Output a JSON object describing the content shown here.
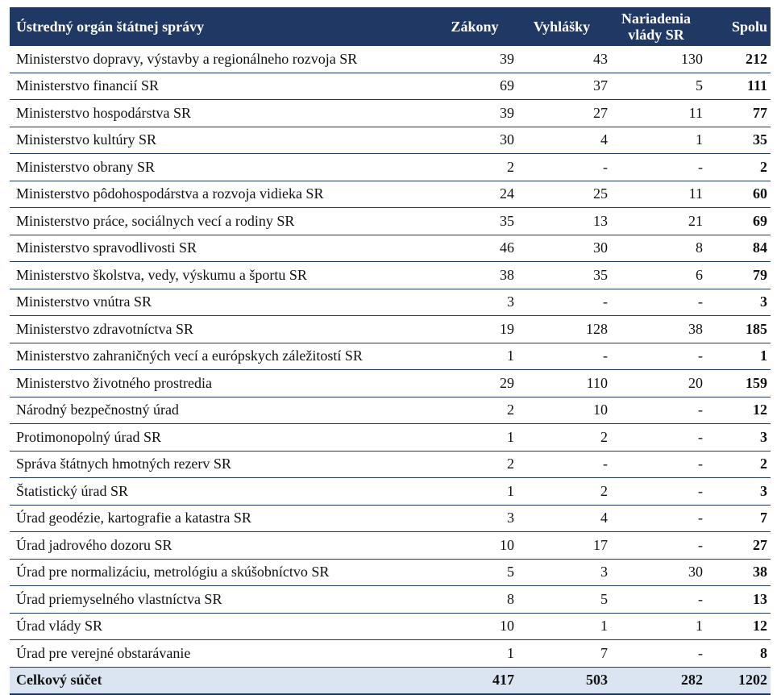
{
  "header": {
    "col0": "Ústredný orgán štátnej správy",
    "col1": "Zákony",
    "col2": "Vyhlášky",
    "col3": "Nariadenia vlády SR",
    "col4": "Spolu"
  },
  "rows": [
    {
      "name": "Ministerstvo dopravy, výstavby a regionálneho rozvoja SR",
      "zakony": "39",
      "vyhlasky": "43",
      "nariadenia": "130",
      "spolu": "212"
    },
    {
      "name": "Ministerstvo financií SR",
      "zakony": "69",
      "vyhlasky": "37",
      "nariadenia": "5",
      "spolu": "111"
    },
    {
      "name": "Ministerstvo hospodárstva SR",
      "zakony": "39",
      "vyhlasky": "27",
      "nariadenia": "11",
      "spolu": "77"
    },
    {
      "name": "Ministerstvo kultúry SR",
      "zakony": "30",
      "vyhlasky": "4",
      "nariadenia": "1",
      "spolu": "35"
    },
    {
      "name": "Ministerstvo obrany SR",
      "zakony": "2",
      "vyhlasky": "-",
      "nariadenia": "-",
      "spolu": "2"
    },
    {
      "name": "Ministerstvo pôdohospodárstva a rozvoja vidieka SR",
      "zakony": "24",
      "vyhlasky": "25",
      "nariadenia": "11",
      "spolu": "60"
    },
    {
      "name": "Ministerstvo práce, sociálnych vecí a rodiny SR",
      "zakony": "35",
      "vyhlasky": "13",
      "nariadenia": "21",
      "spolu": "69"
    },
    {
      "name": "Ministerstvo spravodlivosti SR",
      "zakony": "46",
      "vyhlasky": "30",
      "nariadenia": "8",
      "spolu": "84"
    },
    {
      "name": "Ministerstvo školstva, vedy, výskumu a športu SR",
      "zakony": "38",
      "vyhlasky": "35",
      "nariadenia": "6",
      "spolu": "79"
    },
    {
      "name": "Ministerstvo vnútra SR",
      "zakony": "3",
      "vyhlasky": "-",
      "nariadenia": "-",
      "spolu": "3"
    },
    {
      "name": "Ministerstvo zdravotníctva SR",
      "zakony": "19",
      "vyhlasky": "128",
      "nariadenia": "38",
      "spolu": "185"
    },
    {
      "name": "Ministerstvo zahraničných vecí a európskych záležitostí SR",
      "zakony": "1",
      "vyhlasky": "-",
      "nariadenia": "-",
      "spolu": "1"
    },
    {
      "name": "Ministerstvo životného prostredia",
      "zakony": "29",
      "vyhlasky": "110",
      "nariadenia": "20",
      "spolu": "159"
    },
    {
      "name": "Národný bezpečnostný úrad",
      "zakony": "2",
      "vyhlasky": "10",
      "nariadenia": "-",
      "spolu": "12"
    },
    {
      "name": "Protimonopolný úrad SR",
      "zakony": "1",
      "vyhlasky": "2",
      "nariadenia": "-",
      "spolu": "3"
    },
    {
      "name": "Správa štátnych hmotných rezerv SR",
      "zakony": "2",
      "vyhlasky": "-",
      "nariadenia": "-",
      "spolu": "2"
    },
    {
      "name": "Štatistický úrad SR",
      "zakony": "1",
      "vyhlasky": "2",
      "nariadenia": "-",
      "spolu": "3"
    },
    {
      "name": "Úrad geodézie, kartografie a katastra SR",
      "zakony": "3",
      "vyhlasky": "4",
      "nariadenia": "-",
      "spolu": "7"
    },
    {
      "name": "Úrad jadrového dozoru SR",
      "zakony": "10",
      "vyhlasky": "17",
      "nariadenia": "-",
      "spolu": "27"
    },
    {
      "name": "Úrad pre normalizáciu, metrológiu a skúšobníctvo SR",
      "zakony": "5",
      "vyhlasky": "3",
      "nariadenia": "30",
      "spolu": "38"
    },
    {
      "name": "Úrad priemyselného vlastníctva SR",
      "zakony": "8",
      "vyhlasky": "5",
      "nariadenia": "-",
      "spolu": "13"
    },
    {
      "name": "Úrad vlády SR",
      "zakony": "10",
      "vyhlasky": "1",
      "nariadenia": "1",
      "spolu": "12"
    },
    {
      "name": "Úrad pre verejné obstarávanie",
      "zakony": "1",
      "vyhlasky": "7",
      "nariadenia": "-",
      "spolu": "8"
    }
  ],
  "total": {
    "name": "Celkový súčet",
    "zakony": "417",
    "vyhlasky": "503",
    "nariadenia": "282",
    "spolu": "1202"
  },
  "colors": {
    "header_bg": "#1f3864",
    "total_bg": "#dbe5f1"
  }
}
